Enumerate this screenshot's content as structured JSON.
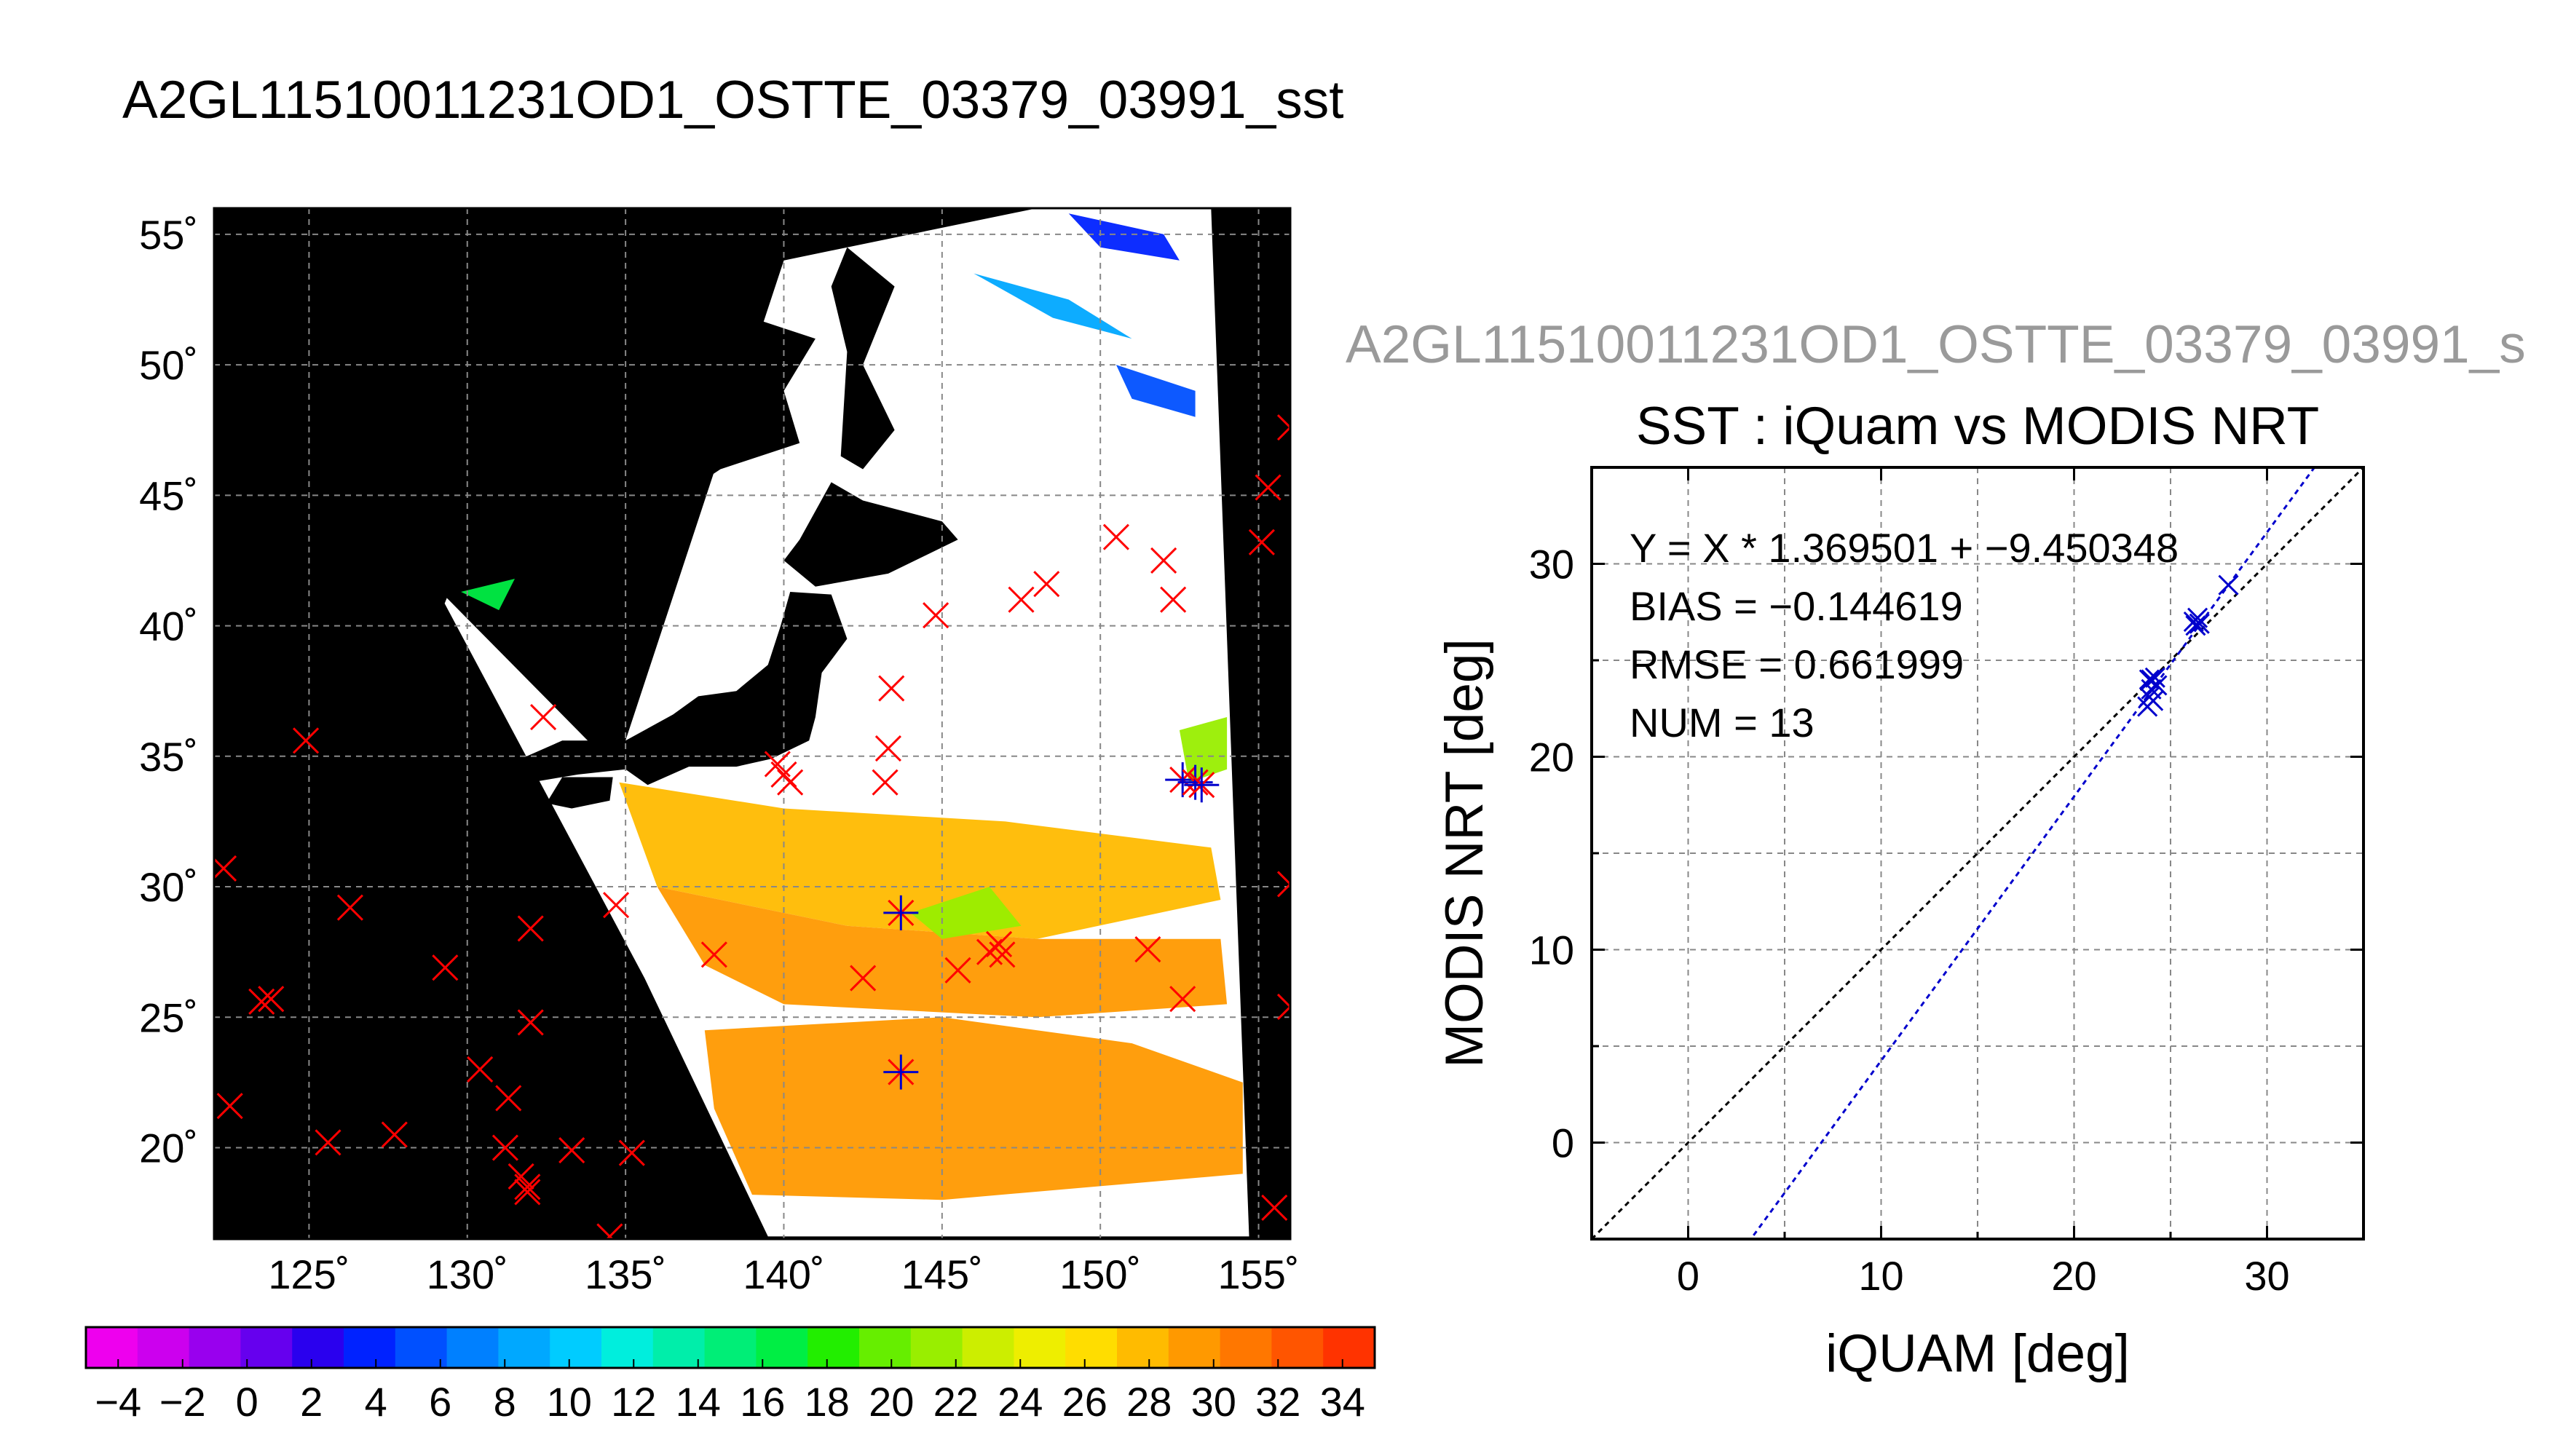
{
  "figure": {
    "title": "A2GL11510011231OD1_OSTTE_03379_03991_sst",
    "scatter_subtitle": "A2GL11510011231OD1_OSTTE_03379_03991_s"
  },
  "colors": {
    "land": "#000000",
    "ocean_bg": "#ffffff",
    "insitu_marker": "#ff0000",
    "match_marker": "#0000cc",
    "fit_line": "#0000cc",
    "one_to_one": "#000000"
  },
  "chart_data": [
    {
      "type": "map",
      "xlim": [
        122,
        156
      ],
      "ylim": [
        16.5,
        56
      ],
      "lon_ticks": [
        125,
        130,
        135,
        140,
        145,
        150,
        155
      ],
      "lat_ticks": [
        20,
        25,
        30,
        35,
        40,
        45,
        50,
        55
      ],
      "lon_tick_labels": [
        "125˚",
        "130˚",
        "135˚",
        "140˚",
        "145˚",
        "150˚",
        "155˚"
      ],
      "lat_tick_labels": [
        "20˚",
        "25˚",
        "30˚",
        "35˚",
        "40˚",
        "45˚",
        "50˚",
        "55˚"
      ],
      "grid": true,
      "swath_corners": [
        [
          134.7,
          34.5
        ],
        [
          140.0,
          54.0
        ],
        [
          148.0,
          56.0
        ],
        [
          153.5,
          56.0
        ],
        [
          154.7,
          16.6
        ],
        [
          139.5,
          16.6
        ],
        [
          135.6,
          26.5
        ],
        [
          129.0,
          41.5
        ]
      ],
      "sst_regions": [
        {
          "label": "28",
          "polygon": [
            [
              134.8,
              34.0
            ],
            [
              140.0,
              33.0
            ],
            [
              147.0,
              32.5
            ],
            [
              153.5,
              31.5
            ],
            [
              153.8,
              29.5
            ],
            [
              148.0,
              28.0
            ],
            [
              142.0,
              28.5
            ],
            [
              136.0,
              30.0
            ]
          ]
        },
        {
          "label": "29",
          "polygon": [
            [
              136.0,
              30.0
            ],
            [
              142.0,
              28.5
            ],
            [
              148.0,
              28.0
            ],
            [
              153.8,
              28.0
            ],
            [
              154.0,
              25.5
            ],
            [
              148.0,
              25.0
            ],
            [
              140.0,
              25.5
            ],
            [
              137.5,
              27.0
            ]
          ]
        },
        {
          "label": "30",
          "polygon": [
            [
              137.5,
              24.5
            ],
            [
              145.0,
              25.0
            ],
            [
              151.0,
              24.0
            ],
            [
              154.5,
              22.5
            ],
            [
              154.5,
              19.0
            ],
            [
              145.0,
              18.0
            ],
            [
              139.0,
              18.2
            ],
            [
              137.8,
              21.5
            ]
          ]
        },
        {
          "label": "22",
          "polygon": [
            [
              144.0,
              29.0
            ],
            [
              146.5,
              30.0
            ],
            [
              147.5,
              28.5
            ],
            [
              145.0,
              28.0
            ]
          ]
        },
        {
          "label": "22",
          "polygon": [
            [
              152.5,
              36.0
            ],
            [
              154.0,
              36.5
            ],
            [
              154.0,
              34.5
            ],
            [
              152.8,
              34.0
            ]
          ]
        },
        {
          "label": "16",
          "polygon": [
            [
              129.8,
              41.3
            ],
            [
              131.5,
              41.8
            ],
            [
              131.0,
              40.6
            ]
          ]
        },
        {
          "label": "8",
          "polygon": [
            [
              146.0,
              53.5
            ],
            [
              149.0,
              52.5
            ],
            [
              151.0,
              51.0
            ],
            [
              148.5,
              51.8
            ]
          ]
        },
        {
          "label": "4",
          "polygon": [
            [
              149.0,
              55.8
            ],
            [
              152.0,
              55.0
            ],
            [
              152.5,
              54.0
            ],
            [
              150.0,
              54.5
            ]
          ]
        },
        {
          "label": "6",
          "polygon": [
            [
              150.5,
              50.0
            ],
            [
              153.0,
              49.0
            ],
            [
              153.0,
              48.0
            ],
            [
              151.0,
              48.7
            ]
          ]
        }
      ],
      "land": [
        {
          "name": "Asia",
          "polygon": [
            [
              122,
              56
            ],
            [
              140.0,
              56
            ],
            [
              140.0,
              54.0
            ],
            [
              138.5,
              52.0
            ],
            [
              141.0,
              51.0
            ],
            [
              140.0,
              49.0
            ],
            [
              140.5,
              47.0
            ],
            [
              138.0,
              46.0
            ],
            [
              135.5,
              44.0
            ],
            [
              133.0,
              42.8
            ],
            [
              131.0,
              42.5
            ],
            [
              129.5,
              41.5
            ],
            [
              129.0,
              40.0
            ],
            [
              127.5,
              39.0
            ],
            [
              128.5,
              38.0
            ],
            [
              129.0,
              35.3
            ],
            [
              126.5,
              34.5
            ],
            [
              126.0,
              36.5
            ],
            [
              126.5,
              37.8
            ],
            [
              125.0,
              39.5
            ],
            [
              124.0,
              40.0
            ],
            [
              122,
              40.0
            ]
          ]
        },
        {
          "name": "Sakhalin",
          "polygon": [
            [
              142.0,
              54.5
            ],
            [
              143.5,
              53.0
            ],
            [
              142.5,
              50.0
            ],
            [
              143.5,
              47.5
            ],
            [
              142.5,
              46.0
            ],
            [
              141.8,
              46.5
            ],
            [
              142.0,
              50.5
            ],
            [
              141.5,
              53.0
            ]
          ]
        },
        {
          "name": "Hokkaido",
          "polygon": [
            [
              140.0,
              42.5
            ],
            [
              140.5,
              43.3
            ],
            [
              141.5,
              45.5
            ],
            [
              142.5,
              44.8
            ],
            [
              145.0,
              44.0
            ],
            [
              145.5,
              43.3
            ],
            [
              143.3,
              42.0
            ],
            [
              141.0,
              41.5
            ]
          ]
        },
        {
          "name": "Honshu",
          "polygon": [
            [
              140.2,
              41.3
            ],
            [
              141.5,
              41.2
            ],
            [
              142.0,
              39.5
            ],
            [
              141.2,
              38.2
            ],
            [
              141.0,
              36.5
            ],
            [
              140.8,
              35.6
            ],
            [
              139.6,
              34.9
            ],
            [
              138.5,
              34.6
            ],
            [
              137.0,
              34.6
            ],
            [
              135.7,
              33.9
            ],
            [
              135.0,
              34.5
            ],
            [
              133.5,
              34.3
            ],
            [
              132.0,
              34.0
            ],
            [
              131.0,
              34.3
            ],
            [
              131.5,
              34.8
            ],
            [
              133.0,
              35.6
            ],
            [
              135.0,
              35.6
            ],
            [
              136.5,
              36.6
            ],
            [
              137.3,
              37.3
            ],
            [
              138.5,
              37.5
            ],
            [
              139.5,
              38.5
            ],
            [
              139.9,
              40.0
            ]
          ]
        },
        {
          "name": "Shikoku",
          "polygon": [
            [
              132.5,
              33.2
            ],
            [
              133.0,
              34.2
            ],
            [
              134.6,
              34.2
            ],
            [
              134.5,
              33.3
            ],
            [
              133.3,
              33.0
            ]
          ]
        },
        {
          "name": "Kyushu",
          "polygon": [
            [
              129.7,
              33.2
            ],
            [
              130.5,
              34.0
            ],
            [
              131.8,
              33.8
            ],
            [
              132.0,
              32.8
            ],
            [
              131.2,
              31.3
            ],
            [
              130.3,
              31.2
            ]
          ]
        }
      ],
      "insitu_points": [
        [
          122.3,
          30.7
        ],
        [
          122.5,
          21.6
        ],
        [
          123.5,
          25.6
        ],
        [
          123.8,
          25.7
        ],
        [
          124.9,
          35.6
        ],
        [
          125.6,
          20.2
        ],
        [
          126.3,
          29.2
        ],
        [
          127.7,
          20.5
        ],
        [
          129.3,
          26.9
        ],
        [
          130.4,
          23.0
        ],
        [
          131.2,
          20.0
        ],
        [
          131.3,
          21.9
        ],
        [
          131.7,
          18.9
        ],
        [
          131.9,
          18.5
        ],
        [
          131.9,
          18.3
        ],
        [
          132.0,
          24.8
        ],
        [
          132.0,
          28.4
        ],
        [
          132.4,
          36.5
        ],
        [
          133.3,
          19.9
        ],
        [
          134.5,
          16.6
        ],
        [
          134.7,
          29.3
        ],
        [
          135.2,
          19.8
        ],
        [
          137.8,
          27.4
        ],
        [
          139.8,
          34.7
        ],
        [
          140.0,
          34.3
        ],
        [
          140.2,
          34.0
        ],
        [
          142.5,
          26.5
        ],
        [
          143.2,
          34.0
        ],
        [
          143.3,
          35.3
        ],
        [
          143.4,
          37.6
        ],
        [
          144.8,
          40.4
        ],
        [
          145.5,
          26.8
        ],
        [
          146.5,
          27.5
        ],
        [
          146.8,
          27.8
        ],
        [
          146.9,
          27.4
        ],
        [
          147.5,
          41.0
        ],
        [
          148.3,
          41.6
        ],
        [
          150.5,
          43.4
        ],
        [
          151.5,
          27.6
        ],
        [
          152.0,
          42.5
        ],
        [
          152.3,
          41.0
        ],
        [
          152.6,
          25.7
        ],
        [
          155.1,
          43.2
        ],
        [
          155.3,
          45.3
        ],
        [
          155.5,
          17.7
        ],
        [
          156.0,
          47.6
        ],
        [
          156.0,
          30.1
        ],
        [
          156.0,
          25.4
        ]
      ],
      "matchup_points": [
        [
          143.7,
          29.0
        ],
        [
          143.7,
          22.9
        ],
        [
          152.6,
          34.1
        ],
        [
          153.0,
          34.0
        ],
        [
          153.2,
          33.9
        ]
      ]
    },
    {
      "type": "colorbar",
      "vmin": -5,
      "vmax": 35,
      "ticks": [
        -4,
        -2,
        0,
        2,
        4,
        6,
        8,
        10,
        12,
        14,
        16,
        18,
        20,
        22,
        24,
        26,
        28,
        30,
        32,
        34
      ],
      "tick_labels": [
        "−4",
        "−2",
        "0",
        "2",
        "4",
        "6",
        "8",
        "10",
        "12",
        "14",
        "16",
        "18",
        "20",
        "22",
        "24",
        "26",
        "28",
        "30",
        "32",
        "34"
      ],
      "color_steps": [
        "#ee00ee",
        "#cc00ee",
        "#9900ee",
        "#6600ee",
        "#2a00ee",
        "#0022ff",
        "#0050ff",
        "#0080ff",
        "#00a8ff",
        "#00ccff",
        "#00eedd",
        "#00eeaa",
        "#00ee77",
        "#00ee44",
        "#22ee00",
        "#66ee00",
        "#99ee00",
        "#ccee00",
        "#eeee00",
        "#ffdd00",
        "#ffbb00",
        "#ff9900",
        "#ff7700",
        "#ff5500",
        "#ff3300"
      ]
    },
    {
      "type": "scatter",
      "title": "SST : iQuam vs MODIS NRT",
      "xlabel": "iQUAM [deg]",
      "ylabel": "MODIS NRT [deg]",
      "xlim": [
        -5,
        35
      ],
      "ylim": [
        -5,
        35
      ],
      "ticks": [
        0,
        10,
        20,
        30
      ],
      "tick_labels": [
        "0",
        "10",
        "20",
        "30"
      ],
      "minor_grid_step": 5,
      "grid": true,
      "stats": [
        "Y = X * 1.369501 + −9.450348",
        "BIAS = −0.144619",
        "RMSE = 0.661999",
        "NUM = 13"
      ],
      "fit": {
        "slope": 1.369501,
        "intercept": -9.450348
      },
      "points": [
        [
          23.8,
          22.6
        ],
        [
          23.9,
          23.1
        ],
        [
          24.0,
          23.5
        ],
        [
          24.0,
          24.0
        ],
        [
          24.2,
          24.1
        ],
        [
          24.3,
          23.7
        ],
        [
          26.2,
          27.0
        ],
        [
          26.3,
          26.8
        ],
        [
          26.4,
          27.2
        ],
        [
          26.5,
          26.9
        ],
        [
          28.0,
          28.9
        ],
        [
          23.9,
          24.0
        ],
        [
          24.1,
          22.9
        ]
      ]
    }
  ]
}
